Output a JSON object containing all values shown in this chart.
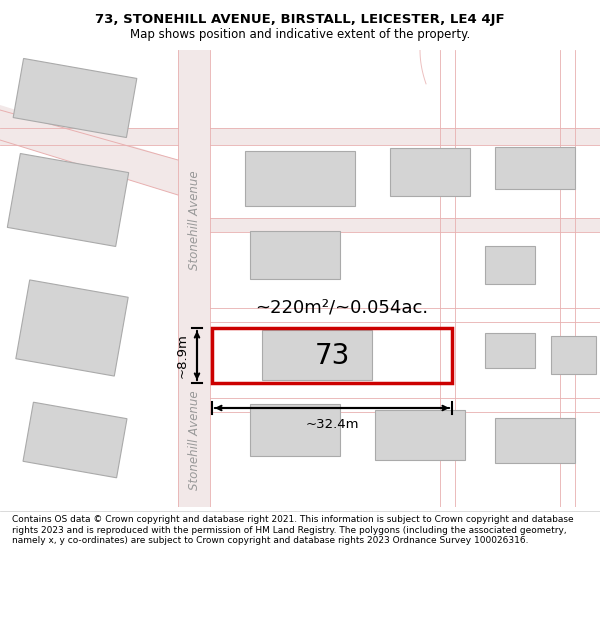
{
  "title": "73, STONEHILL AVENUE, BIRSTALL, LEICESTER, LE4 4JF",
  "subtitle": "Map shows position and indicative extent of the property.",
  "footer": "Contains OS data © Crown copyright and database right 2021. This information is subject to Crown copyright and database rights 2023 and is reproduced with the permission of HM Land Registry. The polygons (including the associated geometry, namely x, y co-ordinates) are subject to Crown copyright and database rights 2023 Ordnance Survey 100026316.",
  "highlight_color": "#cc0000",
  "text_color": "#000000",
  "area_label": "~220m²/~0.054ac.",
  "number_label": "73",
  "dim_width": "~32.4m",
  "dim_height": "~8.9m",
  "street_name": "Stonehill Avenue",
  "road_fill": "#f2e8e8",
  "building_fill": "#d4d4d4",
  "building_edge": "#aaaaaa",
  "map_bg": "#ffffff",
  "footer_bg": "#ffffff",
  "title_bg": "#ffffff",
  "road_line": "#e8b0b0",
  "title_fontsize": 9.5,
  "subtitle_fontsize": 8.5,
  "footer_fontsize": 6.5
}
